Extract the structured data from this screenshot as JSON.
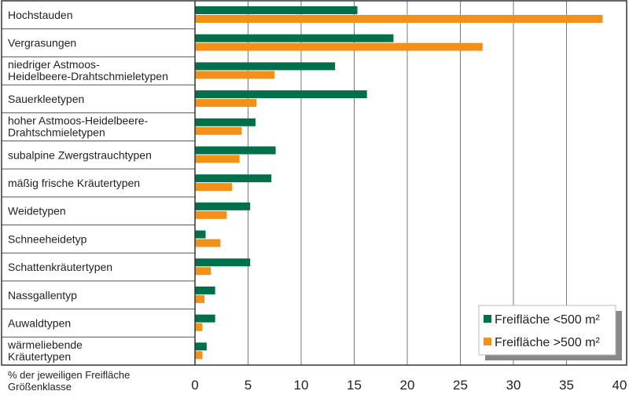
{
  "chart_data": {
    "type": "bar",
    "orientation": "horizontal",
    "categories": [
      [
        "Hochstauden"
      ],
      [
        "Vergrasungen"
      ],
      [
        "niedriger Astmoos-",
        "Heidelbeere-Drahtschmieletypen"
      ],
      [
        "Sauerkleetypen"
      ],
      [
        "hoher Astmoos-Heidelbeere-",
        "Drahtschmieletypen"
      ],
      [
        "subalpine Zwergstrauchtypen"
      ],
      [
        "mäßig frische Kräutertypen"
      ],
      [
        "Weidetypen"
      ],
      [
        "Schneeheidetyp"
      ],
      [
        "Schattenkräutertypen"
      ],
      [
        "Nassgallentyp"
      ],
      [
        "Auwaldtypen"
      ],
      [
        "wärmeliebende",
        "Kräutertypen"
      ]
    ],
    "series": [
      {
        "name": "Freifläche <500 m²",
        "color": "#00704a",
        "values": [
          15.3,
          18.7,
          13.2,
          16.2,
          5.7,
          7.6,
          7.2,
          5.2,
          1.0,
          5.2,
          1.9,
          1.9,
          1.1
        ]
      },
      {
        "name": "Freifläche >500 m²",
        "color": "#f39018",
        "values": [
          38.4,
          27.1,
          7.5,
          5.8,
          4.4,
          4.2,
          3.5,
          3.0,
          2.4,
          1.5,
          0.9,
          0.7,
          0.7
        ]
      }
    ],
    "xlabel": [
      "% der jeweiligen Freifläche",
      "Größenklasse"
    ],
    "xlim": [
      0,
      40
    ],
    "xticks": [
      "0",
      "5",
      "10",
      "15",
      "20",
      "25",
      "30",
      "35",
      "40"
    ],
    "grid": true,
    "legend_position": "bottom-right"
  }
}
